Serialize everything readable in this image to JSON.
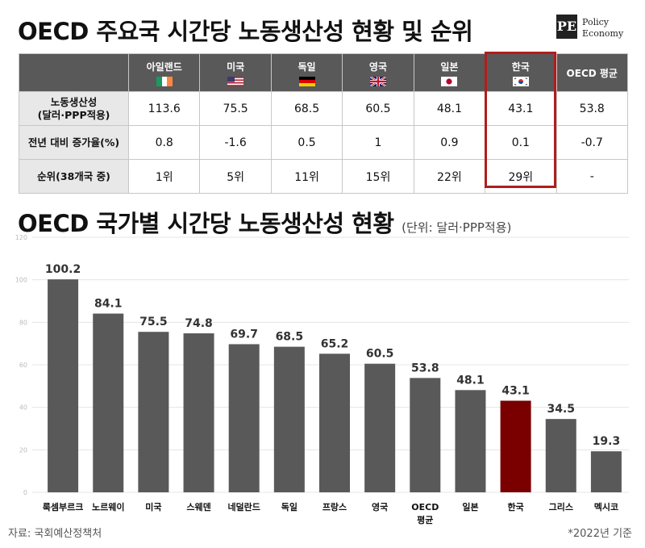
{
  "title": "OECD 주요국 시간당 노동생산성 현황 및 순위",
  "logo": {
    "mark": "PE",
    "line1": "Policy",
    "line2": "Economy"
  },
  "table": {
    "columns": [
      {
        "label": "아일랜드",
        "flag": "ireland-flag-icon"
      },
      {
        "label": "미국",
        "flag": "usa-flag-icon"
      },
      {
        "label": "독일",
        "flag": "germany-flag-icon"
      },
      {
        "label": "영국",
        "flag": "uk-flag-icon"
      },
      {
        "label": "일본",
        "flag": "japan-flag-icon"
      },
      {
        "label": "한국",
        "flag": "korea-flag-icon"
      },
      {
        "label": "OECD 평균",
        "flag": ""
      }
    ],
    "rows": [
      {
        "label_line1": "노동생산성",
        "label_line2": "(달러·PPP적용)",
        "values": [
          "113.6",
          "75.5",
          "68.5",
          "60.5",
          "48.1",
          "43.1",
          "53.8"
        ]
      },
      {
        "label_line1": "전년 대비 증가율(%)",
        "label_line2": "",
        "values": [
          "0.8",
          "-1.6",
          "0.5",
          "1",
          "0.9",
          "0.1",
          "-0.7"
        ]
      },
      {
        "label_line1": "순위(38개국 중)",
        "label_line2": "",
        "values": [
          "1위",
          "5위",
          "11위",
          "15위",
          "22위",
          "29위",
          "-"
        ]
      }
    ],
    "highlight_column": "한국",
    "highlight_color": "#b01d1d"
  },
  "chart_title": "OECD 국가별 시간당 노동생산성 현황",
  "chart_unit": "(단위: 달러·PPP적용)",
  "chart_data": {
    "type": "bar",
    "categories": [
      "룩셈부르크",
      "노르웨이",
      "미국",
      "스웨덴",
      "네덜란드",
      "독일",
      "프랑스",
      "영국",
      "OECD 평균",
      "일본",
      "한국",
      "그리스",
      "멕시코"
    ],
    "values": [
      100.2,
      84.1,
      75.5,
      74.8,
      69.7,
      68.5,
      65.2,
      60.5,
      53.8,
      48.1,
      43.1,
      34.5,
      19.3
    ],
    "value_labels": [
      "100.2",
      "84.1",
      "75.5",
      "74.8",
      "69.7",
      "68.5",
      "65.2",
      "60.5",
      "53.8",
      "48.1",
      "43.1",
      "34.5",
      "19.3"
    ],
    "yticks": [
      "0",
      "20",
      "40",
      "60",
      "80",
      "100",
      "120"
    ],
    "ylim": [
      0,
      120
    ],
    "grid": true,
    "bar_color": "#595959",
    "highlight_category": "한국",
    "highlight_color": "#7a0000"
  },
  "footer": {
    "source": "자료: 국회예산정책처",
    "note": "*2022년 기준"
  }
}
